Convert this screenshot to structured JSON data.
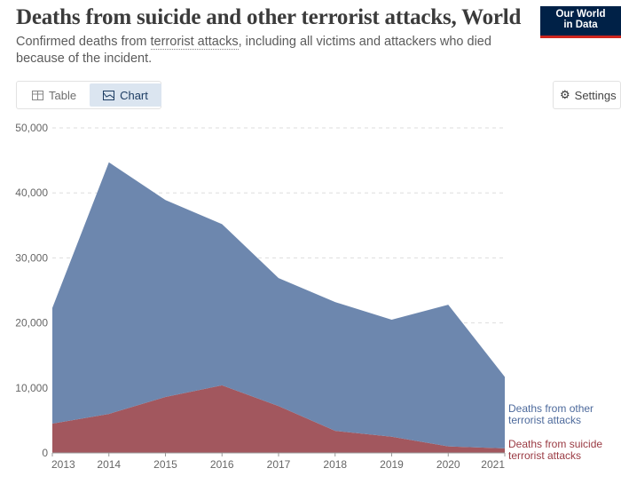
{
  "header": {
    "title": "Deaths from suicide and other terrorist attacks, World",
    "subtitle_pre": "Confirmed deaths from ",
    "subtitle_link": "terrorist attacks",
    "subtitle_post": ", including all victims and attackers who died because of the incident.",
    "logo_text": "Our World in Data"
  },
  "toolbar": {
    "table_label": "Table",
    "chart_label": "Chart",
    "settings_label": "Settings",
    "active_tab": "Chart"
  },
  "chart_data": {
    "type": "area",
    "stacked": true,
    "x": [
      2013,
      2014,
      2015,
      2016,
      2017,
      2018,
      2019,
      2020,
      2021
    ],
    "series": [
      {
        "name": "Deaths from suicide terrorist attacks",
        "color": "#a2575e",
        "values": [
          4500,
          6000,
          8600,
          10400,
          7200,
          3400,
          2500,
          1000,
          700
        ]
      },
      {
        "name": "Deaths from other terrorist attacks",
        "color": "#6d87ae",
        "values": [
          17800,
          38700,
          30300,
          24800,
          19700,
          19800,
          18000,
          21800,
          11000
        ]
      }
    ],
    "yticks": [
      0,
      10000,
      20000,
      30000,
      40000,
      50000
    ],
    "ytick_labels": [
      "0",
      "10,000",
      "20,000",
      "30,000",
      "40,000",
      "50,000"
    ],
    "xtick_labels": [
      "2013",
      "2014",
      "2015",
      "2016",
      "2017",
      "2018",
      "2019",
      "2020",
      "2021"
    ],
    "ylim": [
      0,
      50000
    ],
    "grid": "horizontal dashed",
    "legend": "right, inline labels",
    "legend_labels": [
      {
        "line1": "Deaths from other",
        "line2": "terrorist attacks",
        "color": "#4d6a9c"
      },
      {
        "line1": "Deaths from suicide",
        "line2": "terrorist attacks",
        "color": "#9a3a43"
      }
    ]
  }
}
